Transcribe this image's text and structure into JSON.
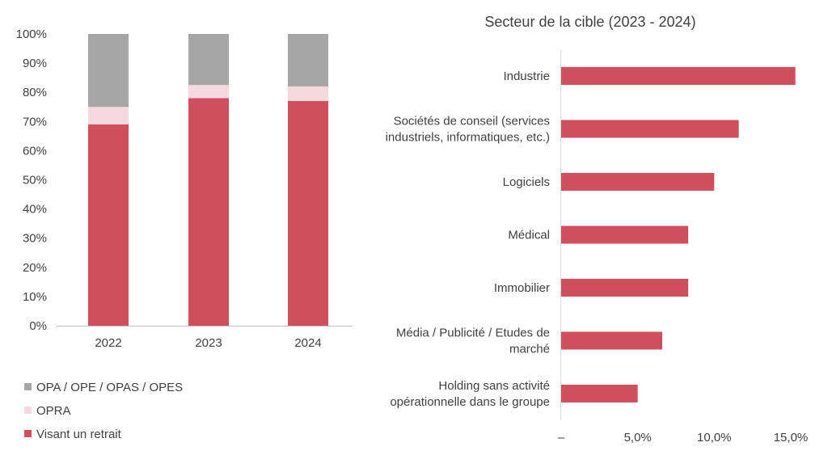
{
  "chart_data": [
    {
      "type": "bar",
      "stacked": true,
      "categories": [
        "2022",
        "2023",
        "2024"
      ],
      "series": [
        {
          "name": "Visant un retrait",
          "values": [
            69,
            78,
            77
          ]
        },
        {
          "name": "OPRA",
          "values": [
            6,
            4.5,
            5
          ]
        },
        {
          "name": "OPA / OPE / OPAS / OPES",
          "values": [
            25,
            17.5,
            18
          ]
        }
      ],
      "y_ticks": [
        "0%",
        "10%",
        "20%",
        "30%",
        "40%",
        "50%",
        "60%",
        "70%",
        "80%",
        "90%",
        "100%"
      ],
      "ylim": [
        0,
        100
      ],
      "legend_placement": "bottom-left",
      "legend_order": [
        "OPA / OPE / OPAS / OPES",
        "OPRA",
        "Visant un retrait"
      ],
      "colors": [
        "#d04f5c",
        "#f6d9dc",
        "#a6a6a6"
      ],
      "grid": false
    },
    {
      "type": "bar",
      "orientation": "horizontal",
      "title": "Secteur de la cible (2023 - 2024)",
      "categories": [
        [
          "Industrie"
        ],
        [
          "Sociétés de conseil (services",
          "industriels, informatiques, etc.)"
        ],
        [
          "Logiciels"
        ],
        [
          "Médical"
        ],
        [
          "Immobilier"
        ],
        [
          "Média / Publicité / Etudes de",
          "marché"
        ],
        [
          "Holding sans activité",
          "opérationnelle dans le groupe"
        ]
      ],
      "values": [
        15.3,
        11.6,
        10.0,
        8.3,
        8.3,
        6.6,
        5.0
      ],
      "x_ticks": [
        "–",
        "5,0%",
        "10,0%",
        "15,0%"
      ],
      "xlim": [
        0,
        15
      ],
      "color": "#d04f5c",
      "grid": false
    }
  ]
}
